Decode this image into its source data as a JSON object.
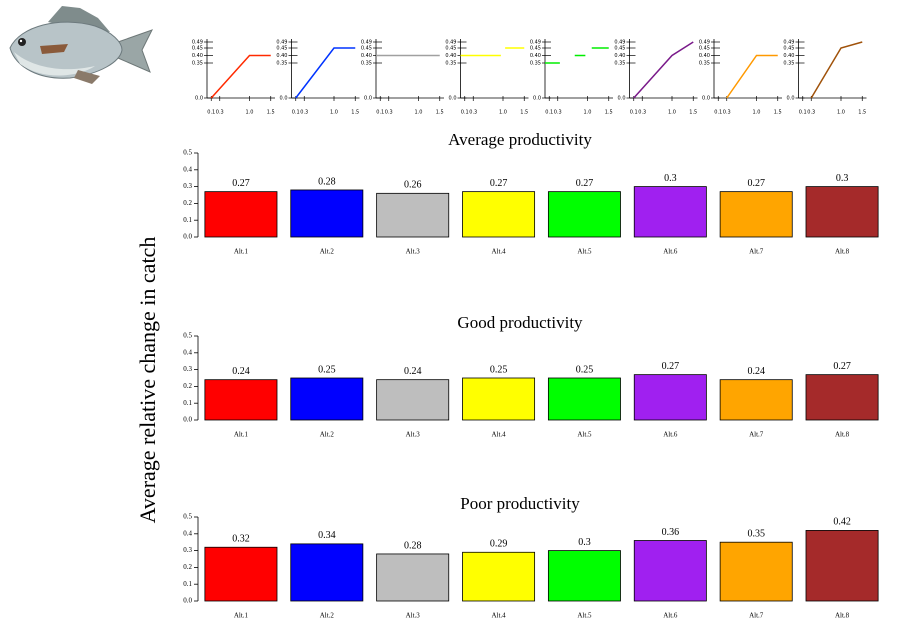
{
  "ylabel": "Average relative change in catch",
  "chart_data": [
    {
      "type": "line",
      "color": "#ff2a00",
      "x": [
        0.1,
        1.0,
        1.5
      ],
      "values": [
        0,
        0.4,
        0.4
      ],
      "xlim": [
        0,
        1.6
      ],
      "xticks": [
        0.1,
        0.3,
        {
          "value": 1,
          "label": "1.0"
        },
        1.5
      ],
      "ylim": [
        0,
        0.49
      ],
      "yticks": [
        {
          "value": 0,
          "label": "0.0"
        },
        0.35,
        {
          "value": 0.4,
          "label": "0.40"
        },
        0.45,
        0.49
      ]
    },
    {
      "type": "line",
      "color": "#0033ff",
      "x": [
        0.1,
        1.0,
        1.5
      ],
      "values": [
        0,
        0.45,
        0.45
      ],
      "xlim": [
        0,
        1.6
      ],
      "xticks": [
        0.1,
        0.3,
        {
          "value": 1,
          "label": "1.0"
        },
        1.5
      ],
      "ylim": [
        0,
        0.49
      ],
      "yticks": [
        {
          "value": 0,
          "label": "0.0"
        },
        0.35,
        {
          "value": 0.4,
          "label": "0.40"
        },
        0.45,
        0.49
      ]
    },
    {
      "type": "line",
      "color": "#a0a0a0",
      "x": [
        0,
        1.5
      ],
      "values": [
        0.4,
        0.4
      ],
      "xlim": [
        0,
        1.6
      ],
      "xticks": [
        0.1,
        0.3,
        {
          "value": 1,
          "label": "1.0"
        },
        1.5
      ],
      "ylim": [
        0,
        0.49
      ],
      "yticks": [
        {
          "value": 0,
          "label": "0.0"
        },
        0.35,
        {
          "value": 0.4,
          "label": "0.40"
        },
        0.45,
        0.49
      ]
    },
    {
      "type": "line",
      "color": "#ffff00",
      "x": [
        0,
        0.95,
        1,
        1.05,
        1.5
      ],
      "values": [
        0.4,
        0.4,
        null,
        0.45,
        0.45
      ],
      "xlim": [
        0,
        1.6
      ],
      "xticks": [
        0.1,
        0.3,
        {
          "value": 1,
          "label": "1.0"
        },
        1.5
      ],
      "ylim": [
        0,
        0.49
      ],
      "yticks": [
        {
          "value": 0,
          "label": "0.0"
        },
        0.35,
        {
          "value": 0.4,
          "label": "0.40"
        },
        0.45,
        0.49
      ]
    },
    {
      "type": "line",
      "color": "#00ee00",
      "x": [
        0,
        0.35,
        0.5,
        0.7,
        0.95,
        1.0,
        1.1,
        1.5
      ],
      "values": [
        0.35,
        0.35,
        null,
        0.4,
        0.4,
        null,
        0.45,
        0.45
      ],
      "xlim": [
        0,
        1.6
      ],
      "xticks": [
        0.1,
        0.3,
        {
          "value": 1,
          "label": "1.0"
        },
        1.5
      ],
      "ylim": [
        0,
        0.49
      ],
      "yticks": [
        {
          "value": 0,
          "label": "0.0"
        },
        0.35,
        {
          "value": 0.4,
          "label": "0.40"
        },
        0.45,
        0.49
      ]
    },
    {
      "type": "line",
      "color": "#7a1a8a",
      "x": [
        0.1,
        1.0,
        1.5
      ],
      "values": [
        0,
        0.4,
        0.49
      ],
      "xlim": [
        0,
        1.6
      ],
      "xticks": [
        0.1,
        0.3,
        {
          "value": 1,
          "label": "1.0"
        },
        1.5
      ],
      "ylim": [
        0,
        0.49
      ],
      "yticks": [
        {
          "value": 0,
          "label": "0.0"
        },
        0.35,
        {
          "value": 0.4,
          "label": "0.40"
        },
        0.45,
        0.49
      ]
    },
    {
      "type": "line",
      "color": "#ff9900",
      "x": [
        0.3,
        1.0,
        1.5
      ],
      "values": [
        0,
        0.4,
        0.4
      ],
      "xlim": [
        0,
        1.6
      ],
      "xticks": [
        0.1,
        0.3,
        {
          "value": 1,
          "label": "1.0"
        },
        1.5
      ],
      "ylim": [
        0,
        0.49
      ],
      "yticks": [
        {
          "value": 0,
          "label": "0.0"
        },
        0.35,
        {
          "value": 0.4,
          "label": "0.40"
        },
        0.45,
        0.49
      ]
    },
    {
      "type": "line",
      "color": "#a0520a",
      "x": [
        0.3,
        1.0,
        1.5
      ],
      "values": [
        0,
        0.45,
        0.49
      ],
      "xlim": [
        0,
        1.6
      ],
      "xticks": [
        0.1,
        0.3,
        {
          "value": 1,
          "label": "1.0"
        },
        1.5
      ],
      "ylim": [
        0,
        0.49
      ],
      "yticks": [
        {
          "value": 0,
          "label": "0.0"
        },
        0.35,
        {
          "value": 0.4,
          "label": "0.40"
        },
        0.45,
        0.49
      ]
    },
    {
      "type": "bar",
      "title": "Average productivity",
      "categories": [
        "Alt.1",
        "Alt.2",
        "Alt.3",
        "Alt.4",
        "Alt.5",
        "Alt.6",
        "Alt.7",
        "Alt.8"
      ],
      "values": [
        0.27,
        0.28,
        0.26,
        0.27,
        0.27,
        0.3,
        0.27,
        0.3
      ],
      "colors": [
        "#ff0000",
        "#0000ff",
        "#bebebe",
        "#ffff00",
        "#00ff00",
        "#a020f0",
        "#ffa500",
        "#a52a2a"
      ],
      "ylim": [
        0,
        0.5
      ],
      "yticks": [
        {
          "value": 0,
          "label": "0.0"
        },
        0.1,
        0.2,
        0.3,
        0.4,
        0.5
      ]
    },
    {
      "type": "bar",
      "title": "Good productivity",
      "categories": [
        "Alt.1",
        "Alt.2",
        "Alt.3",
        "Alt.4",
        "Alt.5",
        "Alt.6",
        "Alt.7",
        "Alt.8"
      ],
      "values": [
        0.24,
        0.25,
        0.24,
        0.25,
        0.25,
        0.27,
        0.24,
        0.27
      ],
      "colors": [
        "#ff0000",
        "#0000ff",
        "#bebebe",
        "#ffff00",
        "#00ff00",
        "#a020f0",
        "#ffa500",
        "#a52a2a"
      ],
      "ylim": [
        0,
        0.5
      ],
      "yticks": [
        {
          "value": 0,
          "label": "0.0"
        },
        0.1,
        0.2,
        0.3,
        0.4,
        0.5
      ]
    },
    {
      "type": "bar",
      "title": "Poor productivity",
      "categories": [
        "Alt.1",
        "Alt.2",
        "Alt.3",
        "Alt.4",
        "Alt.5",
        "Alt.6",
        "Alt.7",
        "Alt.8"
      ],
      "values": [
        0.32,
        0.34,
        0.28,
        0.29,
        0.3,
        0.36,
        0.35,
        0.42
      ],
      "colors": [
        "#ff0000",
        "#0000ff",
        "#bebebe",
        "#ffff00",
        "#00ff00",
        "#a020f0",
        "#ffa500",
        "#a52a2a"
      ],
      "ylim": [
        0,
        0.5
      ],
      "yticks": [
        {
          "value": 0,
          "label": "0.0"
        },
        0.1,
        0.2,
        0.3,
        0.4,
        0.5
      ]
    }
  ]
}
